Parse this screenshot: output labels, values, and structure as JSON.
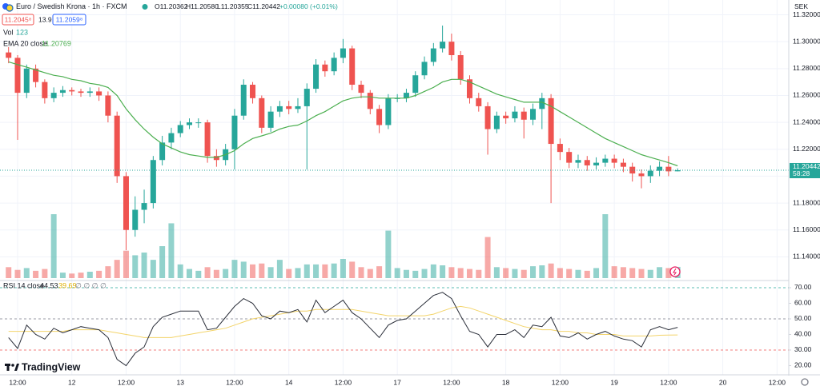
{
  "header": {
    "symbol": "Euro / Swedish Krona · 1h · FXCM",
    "open": "O11.20362",
    "high": "H11.20580",
    "low": "L11.20355",
    "close": "C11.20442",
    "change": "+0.00080 (+0.01%)",
    "sell": "11.2045⁸",
    "spread": "13.9",
    "buy": "11.2059⁸",
    "logo": "TradingView"
  },
  "chart_data": {
    "type": "candlestick",
    "currency": "SEK",
    "countdown": "58:28",
    "grid": true,
    "up_color": "#26a69a",
    "down_color": "#ef5350",
    "categories": [
      null,
      "12:00",
      null,
      null,
      null,
      null,
      null,
      "12",
      null,
      null,
      null,
      null,
      null,
      "12:00",
      null,
      null,
      null,
      null,
      null,
      "13",
      null,
      null,
      null,
      null,
      null,
      "12:00",
      null,
      null,
      null,
      null,
      null,
      "14",
      null,
      null,
      null,
      null,
      null,
      "12:00",
      null,
      null,
      null,
      null,
      null,
      "17",
      null,
      null,
      null,
      null,
      null,
      "12:00",
      null,
      null,
      null,
      null,
      null,
      "18",
      null,
      null,
      null,
      null,
      null,
      "12:00",
      null,
      null,
      null,
      null,
      null,
      "19",
      null,
      null,
      null,
      null,
      null,
      "12:00",
      null,
      null,
      null,
      null,
      null,
      "20",
      null,
      null,
      null,
      null,
      null,
      "12:00"
    ],
    "open": [
      11.292,
      11.288,
      11.262,
      11.28,
      11.27,
      11.258,
      11.262,
      11.264,
      11.263,
      11.262,
      11.263,
      11.26,
      11.245,
      11.2,
      11.16,
      11.175,
      11.18,
      11.212,
      11.225,
      11.232,
      11.238,
      11.24,
      11.24,
      11.215,
      11.212,
      11.22,
      11.245,
      11.268,
      11.258,
      11.236,
      11.248,
      11.252,
      11.25,
      11.252,
      11.265,
      11.283,
      11.278,
      11.288,
      11.295,
      11.268,
      11.262,
      11.25,
      11.238,
      11.258,
      11.258,
      11.262,
      11.275,
      11.285,
      11.295,
      11.3,
      11.29,
      11.272,
      11.258,
      11.252,
      11.235,
      11.245,
      11.243,
      11.248,
      11.242,
      11.25,
      11.258,
      11.224,
      11.218,
      11.21,
      11.212,
      11.208,
      11.21,
      11.213,
      11.21,
      11.207,
      11.202,
      11.2,
      11.204,
      11.207,
      11.20362,
      null,
      null,
      null,
      null,
      null,
      null,
      null,
      null,
      null,
      null,
      null
    ],
    "high": [
      11.296,
      11.29,
      11.283,
      11.283,
      11.272,
      11.266,
      11.267,
      11.266,
      11.265,
      11.266,
      11.266,
      11.263,
      11.248,
      11.203,
      11.185,
      11.19,
      11.215,
      11.23,
      11.236,
      11.241,
      11.243,
      11.243,
      11.242,
      11.22,
      11.224,
      11.25,
      11.272,
      11.27,
      11.26,
      11.252,
      11.256,
      11.256,
      11.258,
      11.269,
      11.287,
      11.286,
      11.292,
      11.302,
      11.297,
      11.271,
      11.264,
      11.253,
      11.261,
      11.261,
      11.265,
      11.278,
      11.289,
      11.299,
      11.312,
      11.306,
      11.293,
      11.275,
      11.262,
      11.255,
      11.248,
      11.248,
      11.252,
      11.251,
      11.254,
      11.262,
      11.261,
      11.228,
      11.221,
      11.216,
      11.215,
      11.214,
      11.216,
      11.216,
      11.213,
      11.21,
      11.205,
      11.208,
      11.211,
      11.215,
      11.2058,
      null,
      null,
      null,
      null,
      null,
      null,
      null,
      null,
      null,
      null,
      null
    ],
    "low": [
      11.284,
      11.227,
      11.258,
      11.266,
      11.254,
      11.255,
      11.259,
      11.26,
      11.259,
      11.259,
      11.256,
      11.24,
      11.195,
      11.145,
      11.155,
      11.165,
      11.176,
      11.208,
      11.22,
      11.229,
      11.235,
      11.236,
      11.21,
      11.207,
      11.208,
      11.205,
      11.242,
      11.254,
      11.232,
      11.233,
      11.244,
      11.246,
      11.247,
      11.205,
      11.262,
      11.274,
      11.275,
      11.284,
      11.264,
      11.258,
      11.246,
      11.232,
      11.235,
      11.255,
      11.255,
      11.259,
      11.272,
      11.282,
      11.292,
      11.286,
      11.268,
      11.254,
      11.248,
      11.216,
      11.232,
      11.239,
      11.24,
      11.228,
      11.238,
      11.235,
      11.18,
      11.212,
      11.206,
      11.206,
      11.204,
      11.205,
      11.207,
      11.206,
      11.203,
      11.196,
      11.191,
      11.195,
      11.2,
      11.2,
      11.20355,
      null,
      null,
      null,
      null,
      null,
      null,
      null,
      null,
      null,
      null,
      null
    ],
    "close": [
      11.288,
      11.262,
      11.28,
      11.27,
      11.258,
      11.262,
      11.264,
      11.263,
      11.262,
      11.263,
      11.26,
      11.245,
      11.2,
      11.16,
      11.175,
      11.18,
      11.212,
      11.225,
      11.232,
      11.238,
      11.24,
      11.24,
      11.215,
      11.212,
      11.22,
      11.245,
      11.268,
      11.258,
      11.236,
      11.248,
      11.252,
      11.25,
      11.252,
      11.265,
      11.283,
      11.278,
      11.288,
      11.295,
      11.268,
      11.262,
      11.25,
      11.238,
      11.258,
      11.258,
      11.262,
      11.275,
      11.285,
      11.295,
      11.3,
      11.29,
      11.272,
      11.258,
      11.252,
      11.235,
      11.245,
      11.243,
      11.248,
      11.242,
      11.25,
      11.258,
      11.224,
      11.218,
      11.21,
      11.212,
      11.208,
      11.21,
      11.213,
      11.21,
      11.207,
      11.202,
      11.2,
      11.204,
      11.207,
      11.2036,
      11.20442,
      null,
      null,
      null,
      null,
      null,
      null,
      null,
      null,
      null,
      null,
      null
    ],
    "ylim": [
      11.123,
      11.331
    ],
    "yticks": [
      {
        "value": 11.14,
        "label": "11.14000"
      },
      {
        "value": 11.16,
        "label": "11.16000"
      },
      {
        "value": 11.18,
        "label": "11.18000"
      },
      {
        "value": 11.2,
        "label": "11.20000"
      },
      {
        "value": 11.22,
        "label": "11.22000"
      },
      {
        "value": 11.24,
        "label": "11.24000"
      },
      {
        "value": 11.26,
        "label": "11.26000"
      },
      {
        "value": 11.28,
        "label": "11.28000"
      },
      {
        "value": 11.3,
        "label": "11.30000"
      },
      {
        "value": 11.32,
        "label": "11.32000"
      }
    ],
    "volume": {
      "name": "Vol",
      "up_color": "#26a69a80",
      "down_color": "#ef535080",
      "values": [
        120,
        90,
        110,
        80,
        100,
        700,
        60,
        50,
        60,
        70,
        80,
        130,
        200,
        300,
        250,
        280,
        200,
        350,
        600,
        150,
        100,
        80,
        120,
        90,
        100,
        200,
        180,
        150,
        160,
        120,
        200,
        100,
        110,
        150,
        150,
        150,
        160,
        210,
        180,
        120,
        100,
        130,
        520,
        110,
        90,
        80,
        100,
        150,
        140,
        120,
        110,
        100,
        90,
        450,
        120,
        110,
        100,
        90,
        130,
        140,
        160,
        110,
        100,
        90,
        80,
        110,
        700,
        130,
        120,
        110,
        100,
        90,
        120,
        110,
        123,
        null,
        null,
        null,
        null,
        null,
        null,
        null,
        null,
        null,
        null,
        null
      ]
    },
    "ema": {
      "name": "EMA 20 close",
      "color": "#4caf50",
      "values": [
        11.285,
        11.283,
        11.281,
        11.279,
        11.277,
        11.275,
        11.274,
        11.272,
        11.271,
        11.269,
        11.268,
        11.266,
        11.26,
        11.25,
        11.242,
        11.235,
        11.229,
        11.224,
        11.221,
        11.218,
        11.216,
        11.215,
        11.214,
        11.214,
        11.216,
        11.219,
        11.224,
        11.228,
        11.23,
        11.232,
        11.235,
        11.237,
        11.238,
        11.241,
        11.245,
        11.248,
        11.252,
        11.256,
        11.258,
        11.259,
        11.259,
        11.258,
        11.258,
        11.258,
        11.258,
        11.26,
        11.263,
        11.266,
        11.27,
        11.272,
        11.272,
        11.27,
        11.267,
        11.264,
        11.261,
        11.259,
        11.257,
        11.255,
        11.255,
        11.255,
        11.252,
        11.248,
        11.244,
        11.24,
        11.236,
        11.232,
        11.228,
        11.225,
        11.222,
        11.219,
        11.216,
        11.214,
        11.212,
        11.21,
        11.20769,
        null,
        null,
        null,
        null,
        null,
        null,
        null,
        null,
        null,
        null,
        null
      ]
    },
    "rsi": {
      "name": "RSI 14 close",
      "color": "#2a2e39",
      "ma_color": "#f3d46a",
      "extra": "∅ ∅ ∅ ∅",
      "values": [
        38,
        31,
        46,
        40,
        37,
        44,
        41,
        43,
        45,
        44,
        43,
        38,
        24,
        20,
        28,
        32,
        45,
        51,
        53,
        55,
        55,
        55,
        43,
        44,
        51,
        58,
        63,
        60,
        52,
        50,
        55,
        54,
        56,
        48,
        62,
        54,
        58,
        62,
        54,
        50,
        44,
        38,
        46,
        49,
        50,
        55,
        60,
        65,
        67,
        63,
        52,
        42,
        40,
        32,
        40,
        40,
        43,
        38,
        46,
        45,
        51,
        39,
        38,
        41,
        37,
        40,
        42,
        39,
        37,
        36,
        32,
        43,
        45,
        43,
        44.53,
        null,
        null,
        null,
        null,
        null,
        null,
        null,
        null,
        null,
        null,
        null
      ],
      "ma_values": [
        42,
        42,
        42,
        42,
        42,
        42,
        42,
        43,
        43,
        43,
        43,
        42,
        41,
        40,
        39,
        38,
        38,
        38,
        38,
        39,
        40,
        41,
        42,
        43,
        44,
        46,
        48,
        50,
        51,
        52,
        53,
        54,
        55,
        55,
        56,
        56,
        56,
        56,
        56,
        55,
        54,
        53,
        52,
        52,
        52,
        52,
        52,
        53,
        55,
        57,
        58,
        57,
        55,
        53,
        51,
        49,
        47,
        45,
        44,
        43,
        43,
        42,
        42,
        41,
        41,
        40,
        40,
        40,
        39,
        39,
        39,
        39,
        39.5,
        39.6,
        39.69,
        null,
        null,
        null,
        null,
        null,
        null,
        null,
        null,
        null,
        null,
        null
      ],
      "ylim": [
        14.6,
        74.1
      ],
      "yticks": [
        {
          "value": 20,
          "label": "20.00"
        },
        {
          "value": 30,
          "label": "30.00"
        },
        {
          "value": 40,
          "label": "40.00"
        },
        {
          "value": 50,
          "label": "50.00"
        },
        {
          "value": 60,
          "label": "60.00"
        },
        {
          "value": 70,
          "label": "70.00"
        }
      ],
      "levels": [
        70,
        50,
        30
      ]
    }
  }
}
